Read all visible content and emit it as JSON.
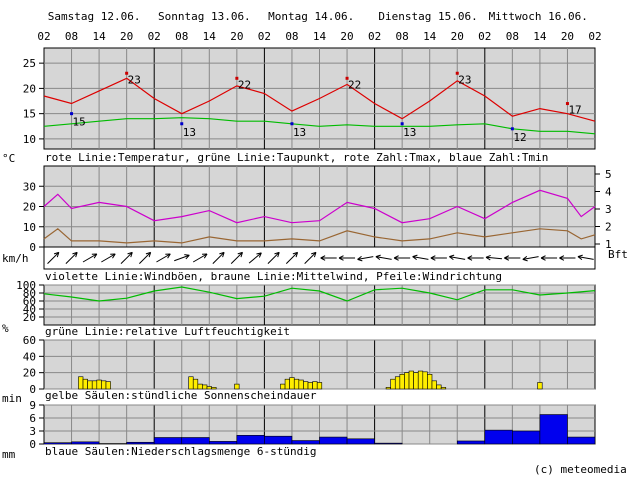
{
  "days": [
    "Samstag 12.06.",
    "Sonntag 13.06.",
    "Montag 14.06.",
    "Dienstag 15.06.",
    "Mittwoch 16.06."
  ],
  "hour_ticks": [
    "02",
    "08",
    "14",
    "20",
    "02",
    "08",
    "14",
    "20",
    "02",
    "08",
    "14",
    "20",
    "02",
    "08",
    "14",
    "20",
    "02",
    "08",
    "14",
    "20",
    "02"
  ],
  "captions": {
    "temp": "rote Linie:Temperatur, grüne Linie:Taupunkt, rote Zahl:Tmax, blaue Zahl:Tmin",
    "wind": "violette Linie:Windböen, braune Linie:Mittelwind, Pfeile:Windrichtung",
    "hum": "grüne Linie:relative Luftfeuchtigkeit",
    "sun": "gelbe Säulen:stündliche Sonnenscheindauer",
    "rain": "blaue Säulen:Niederschlagsmenge 6-stündig"
  },
  "units": {
    "temp": "°C",
    "wind": "km/h",
    "bft": "Bft",
    "hum": "%",
    "sun": "min",
    "rain": "mm"
  },
  "credit": "(c) meteomedia",
  "colors": {
    "temperature": "#dd0000",
    "dewpoint": "#00bb00",
    "gust": "#cc00cc",
    "mean_wind": "#996633",
    "humidity": "#00bb00",
    "sun": "#ffee00",
    "rain": "#0000ee",
    "tmin_label": "#0000cc",
    "tmax_label": "#cc0000",
    "plot_bg": "#d6d6d6"
  },
  "chart_data": [
    {
      "type": "line",
      "x_label_unit": "hours since Sat 02:00",
      "ylim": [
        8,
        28
      ],
      "yticks": [
        10,
        15,
        20,
        25
      ],
      "ylabel": "°C",
      "series": [
        {
          "name": "Temperatur",
          "x": [
            0,
            6,
            12,
            18,
            24,
            30,
            36,
            42,
            48,
            54,
            60,
            66,
            72,
            78,
            84,
            90,
            96,
            102,
            108,
            114,
            120
          ],
          "values": [
            18.5,
            17,
            19.5,
            22,
            18,
            15,
            17.5,
            20.5,
            19,
            15.5,
            18,
            20.8,
            17,
            14,
            17.5,
            21.5,
            18.5,
            14.5,
            16,
            15,
            13.5
          ]
        },
        {
          "name": "Taupunkt",
          "x": [
            0,
            6,
            12,
            18,
            24,
            30,
            36,
            42,
            48,
            54,
            60,
            66,
            72,
            78,
            84,
            90,
            96,
            102,
            108,
            114,
            120
          ],
          "values": [
            12.5,
            13,
            13.5,
            14,
            14,
            14.2,
            14,
            13.5,
            13.5,
            13,
            12.5,
            12.8,
            12.5,
            12.5,
            12.5,
            12.8,
            13,
            12,
            11.5,
            11.5,
            11
          ]
        }
      ],
      "tmax": [
        {
          "x": 18,
          "value": 23
        },
        {
          "x": 42,
          "value": 22
        },
        {
          "x": 66,
          "value": 22
        },
        {
          "x": 90,
          "value": 23
        },
        {
          "x": 114,
          "value": 17
        }
      ],
      "tmin": [
        {
          "x": 6,
          "value": 15
        },
        {
          "x": 30,
          "value": 13
        },
        {
          "x": 54,
          "value": 13
        },
        {
          "x": 78,
          "value": 13
        },
        {
          "x": 102,
          "value": 12
        }
      ]
    },
    {
      "type": "line",
      "ylim": [
        0,
        40
      ],
      "yticks": [
        0,
        10,
        20,
        30
      ],
      "bft_ticks": [
        1,
        2,
        3,
        4,
        5
      ],
      "ylabel": "km/h",
      "series": [
        {
          "name": "Windböen",
          "x": [
            0,
            3,
            6,
            12,
            18,
            24,
            30,
            36,
            42,
            48,
            54,
            60,
            66,
            72,
            78,
            84,
            90,
            96,
            102,
            108,
            114,
            117,
            120
          ],
          "values": [
            20,
            26,
            19,
            22,
            20,
            13,
            15,
            18,
            12,
            15,
            12,
            13,
            22,
            19,
            12,
            14,
            20,
            14,
            22,
            28,
            24,
            15,
            20
          ]
        },
        {
          "name": "Mittelwind",
          "x": [
            0,
            3,
            6,
            12,
            18,
            24,
            30,
            36,
            42,
            48,
            54,
            60,
            66,
            72,
            78,
            84,
            90,
            96,
            102,
            108,
            114,
            117,
            120
          ],
          "values": [
            4,
            9,
            3,
            3,
            2,
            3,
            2,
            5,
            3,
            3,
            4,
            3,
            8,
            5,
            3,
            4,
            7,
            5,
            7,
            9,
            8,
            4,
            6
          ]
        }
      ],
      "wind_direction_deg": [
        225,
        225,
        240,
        240,
        225,
        225,
        240,
        250,
        240,
        225,
        225,
        230,
        225,
        225,
        225,
        90,
        90,
        80,
        100,
        90,
        100,
        90,
        100,
        90,
        95,
        90,
        80,
        90,
        90,
        100
      ]
    },
    {
      "type": "line",
      "ylim": [
        0,
        100
      ],
      "yticks": [
        20,
        40,
        60,
        80,
        100
      ],
      "ylabel": "%",
      "series": [
        {
          "name": "relative Luftfeuchtigkeit",
          "x": [
            0,
            6,
            12,
            18,
            24,
            30,
            36,
            42,
            48,
            54,
            60,
            66,
            72,
            78,
            84,
            90,
            96,
            102,
            108,
            114,
            120
          ],
          "values": [
            78,
            70,
            60,
            67,
            85,
            95,
            82,
            66,
            72,
            92,
            85,
            60,
            88,
            92,
            80,
            63,
            88,
            88,
            75,
            80,
            86
          ]
        }
      ]
    },
    {
      "type": "bar",
      "ylim": [
        0,
        60
      ],
      "yticks": [
        0,
        20,
        40,
        60
      ],
      "ylabel": "min",
      "bar_hours": [
        8,
        9,
        10,
        11,
        12,
        13,
        14,
        32,
        33,
        34,
        35,
        36,
        37,
        42,
        52,
        53,
        54,
        55,
        56,
        57,
        58,
        59,
        60,
        75,
        76,
        77,
        78,
        79,
        80,
        81,
        82,
        83,
        84,
        85,
        86,
        87,
        108
      ],
      "values": [
        15,
        12,
        10,
        10,
        11,
        10,
        9,
        15,
        12,
        6,
        5,
        3,
        2,
        6,
        6,
        12,
        14,
        12,
        11,
        9,
        8,
        9,
        8,
        2,
        12,
        15,
        18,
        20,
        22,
        20,
        22,
        21,
        18,
        10,
        5,
        2,
        8
      ]
    },
    {
      "type": "bar",
      "ylim": [
        0,
        9
      ],
      "yticks": [
        0,
        3,
        6,
        9
      ],
      "ylabel": "mm",
      "interval_start_hours": [
        0,
        6,
        12,
        18,
        24,
        30,
        36,
        42,
        48,
        54,
        60,
        66,
        72,
        78,
        84,
        90,
        96,
        102,
        108,
        114
      ],
      "values": [
        0.3,
        0.5,
        0.1,
        0.4,
        1.5,
        1.5,
        0.6,
        2.0,
        1.8,
        0.8,
        1.6,
        1.2,
        0.2,
        0.0,
        0.0,
        0.7,
        3.2,
        3.0,
        6.8,
        1.6
      ]
    }
  ]
}
